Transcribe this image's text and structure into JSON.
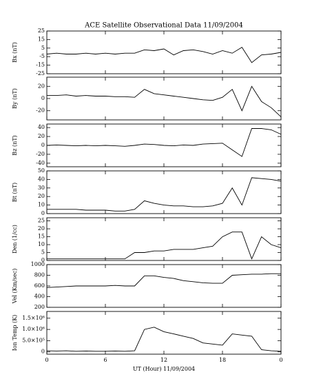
{
  "title": "ACE Satellite Observational Data   11/09/2004",
  "xlabel": "UT (Hour)   11/09/2004",
  "x": [
    0,
    1,
    2,
    3,
    4,
    5,
    6,
    7,
    8,
    9,
    10,
    11,
    12,
    13,
    14,
    15,
    16,
    17,
    18,
    19,
    20,
    21,
    22,
    23,
    24
  ],
  "xlim": [
    0,
    24
  ],
  "xticks": [
    0,
    6,
    12,
    18,
    {
      "value": 24,
      "label": "0"
    }
  ],
  "chart_data": [
    {
      "type": "line",
      "ylabel": "Bx (nT)",
      "color": "#000000",
      "ylim": [
        -25,
        25
      ],
      "yticks": [
        -25,
        -15,
        -5,
        5,
        15,
        25
      ],
      "values": [
        -2,
        -1,
        -2,
        -2,
        -1,
        -2,
        -1,
        -2,
        -1,
        -1,
        3,
        2,
        4,
        -3,
        2,
        3,
        1,
        -2,
        2,
        -1,
        6,
        -12,
        -3,
        -2,
        0
      ]
    },
    {
      "type": "line",
      "ylabel": "By (nT)",
      "color": "#000000",
      "ylim": [
        -35,
        35
      ],
      "yticks": [
        -20,
        0,
        20
      ],
      "values": [
        5,
        5,
        6,
        4,
        5,
        4,
        4,
        3,
        3,
        2,
        15,
        8,
        6,
        4,
        2,
        0,
        -2,
        -3,
        2,
        15,
        -20,
        20,
        -5,
        -15,
        -30
      ]
    },
    {
      "type": "line",
      "ylabel": "Bz (nT)",
      "color": "#000000",
      "ylim": [
        -48,
        48
      ],
      "yticks": [
        -40,
        -20,
        0,
        20,
        40
      ],
      "values": [
        0,
        1,
        0,
        -1,
        0,
        -1,
        0,
        -1,
        -2,
        0,
        3,
        2,
        0,
        -1,
        1,
        0,
        3,
        4,
        5,
        -10,
        -25,
        38,
        38,
        35,
        25
      ]
    },
    {
      "type": "line",
      "ylabel": "Bt (nT)",
      "color": "#000000",
      "ylim": [
        0,
        50
      ],
      "yticks": [
        0,
        10,
        20,
        30,
        40,
        50
      ],
      "values": [
        5,
        5,
        5,
        5,
        4,
        4,
        4,
        3,
        3,
        5,
        15,
        12,
        10,
        9,
        9,
        8,
        8,
        9,
        12,
        30,
        10,
        42,
        41,
        40,
        38
      ]
    },
    {
      "type": "line",
      "ylabel": "Den (1/cc)",
      "color": "#000000",
      "ylim": [
        0,
        27
      ],
      "yticks": [
        0,
        5,
        10,
        15,
        20,
        25
      ],
      "values": [
        1,
        1,
        1,
        1,
        1,
        1,
        1,
        1,
        1,
        5,
        5,
        6,
        6,
        7,
        7,
        7,
        8,
        9,
        15,
        18,
        18,
        1,
        15,
        10,
        8
      ]
    },
    {
      "type": "line",
      "ylabel": "Vel (Km/sec)",
      "color": "#000000",
      "ylim": [
        200,
        1000
      ],
      "yticks": [
        200,
        400,
        600,
        800,
        1000
      ],
      "values": [
        570,
        580,
        590,
        600,
        600,
        600,
        600,
        610,
        600,
        600,
        790,
        790,
        760,
        740,
        700,
        680,
        660,
        650,
        650,
        800,
        810,
        820,
        820,
        830,
        830
      ]
    },
    {
      "type": "line",
      "ylabel": "Ion Temp (K)",
      "color": "#000000",
      "ylim": [
        -100000,
        1800000
      ],
      "yticks": [
        0,
        {
          "value": 500000,
          "label": "5.0×10⁵"
        },
        {
          "value": 1000000,
          "label": "1.0×10⁶"
        },
        {
          "value": 1500000,
          "label": "1.5×10⁶"
        }
      ],
      "values": [
        50000,
        40000,
        50000,
        30000,
        40000,
        30000,
        30000,
        40000,
        30000,
        50000,
        1000000,
        1100000,
        900000,
        800000,
        700000,
        600000,
        400000,
        350000,
        300000,
        800000,
        750000,
        700000,
        100000,
        50000,
        30000
      ]
    }
  ]
}
